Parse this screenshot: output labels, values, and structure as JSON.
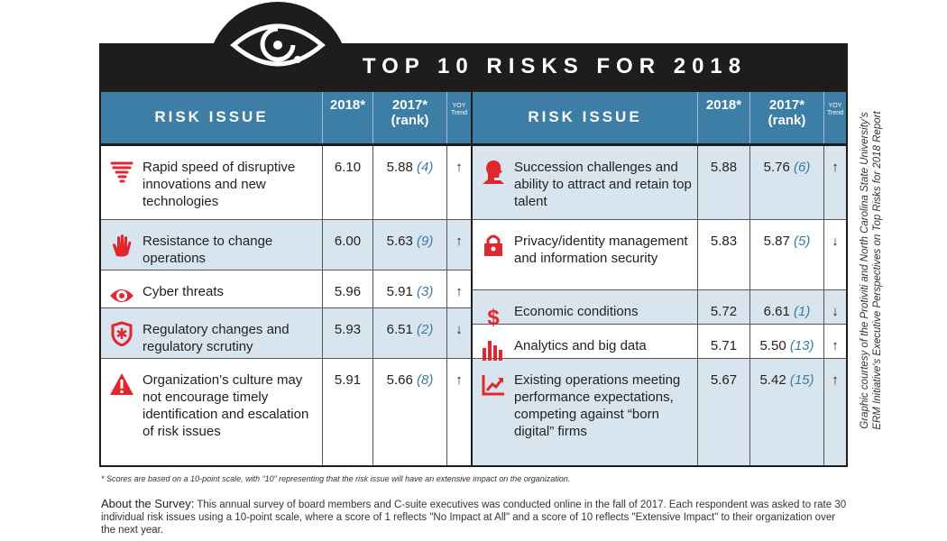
{
  "title": "TOP 10 RISKS FOR 2018",
  "colors": {
    "header": "#3d7ea6",
    "alt_row": "#d9e5ee",
    "icon": "#e0262e",
    "rank": "#3a7ca5",
    "bar": "#1f1c1c"
  },
  "headers": {
    "issue": "RISK ISSUE",
    "y2018": "2018*",
    "y2017": "2017*",
    "rank": "(rank)",
    "trend1": "YOY",
    "trend2": "Trend"
  },
  "left": [
    {
      "icon": "tornado-icon",
      "issue": "Rapid speed of disruptive innovations and new technologies",
      "score2018": "6.10",
      "score2017": "5.88",
      "rank": "(4)",
      "trend": "↑"
    },
    {
      "icon": "hand-icon",
      "issue": "Resistance to change operations",
      "score2018": "6.00",
      "score2017": "5.63",
      "rank": "(9)",
      "trend": "↑"
    },
    {
      "icon": "eye-icon",
      "issue": "Cyber threats",
      "score2018": "5.96",
      "score2017": "5.91",
      "rank": "(3)",
      "trend": "↑"
    },
    {
      "icon": "badge-icon",
      "issue": "Regulatory changes and regulatory scrutiny",
      "score2018": "5.93",
      "score2017": "6.51",
      "rank": "(2)",
      "trend": "↓"
    },
    {
      "icon": "warning-icon",
      "issue": "Organization’s culture may not encourage timely identification and escalation of risk issues",
      "score2018": "5.91",
      "score2017": "5.66",
      "rank": "(8)",
      "trend": "↑"
    }
  ],
  "right": [
    {
      "icon": "person-icon",
      "issue": "Succession challenges and ability to attract and retain top talent",
      "score2018": "5.88",
      "score2017": "5.76",
      "rank": "(6)",
      "trend": "↑"
    },
    {
      "icon": "lock-icon",
      "issue": "Privacy/identity management and information security",
      "score2018": "5.83",
      "score2017": "5.87",
      "rank": "(5)",
      "trend": "↓"
    },
    {
      "icon": "dollar-icon",
      "issue": "Economic conditions",
      "score2018": "5.72",
      "score2017": "6.61",
      "rank": "(1)",
      "trend": "↓"
    },
    {
      "icon": "bar-chart-icon",
      "issue": "Analytics and big data",
      "score2018": "5.71",
      "score2017": "5.50",
      "rank": "(13)",
      "trend": "↑"
    },
    {
      "icon": "growth-chart-icon",
      "issue": "Existing operations meeting performance expectations, competing against “born digital” firms",
      "score2018": "5.67",
      "score2017": "5.42",
      "rank": "(15)",
      "trend": "↑"
    }
  ],
  "footnote": "* Scores are based on a 10-point scale, with “10” representing that the risk issue will have an extensive impact on the organization.",
  "about_label": "About the Survey:",
  "about_text": " This annual survey of board members and C-suite executives was conducted online in the fall of 2017. Each respondent was asked to rate 30 individual risk issues using a 10-point scale, where a score of 1 reflects \"No Impact at All\" and a score of 10 reflects \"Extensive Impact\" to their organization over the next year.",
  "credit_line1": "Graphic courtesy of the Protiviti and North Carolina State University's",
  "credit_line2": "ERM Initiative's Executive Perspectives on Top Risks for 2018 Report"
}
